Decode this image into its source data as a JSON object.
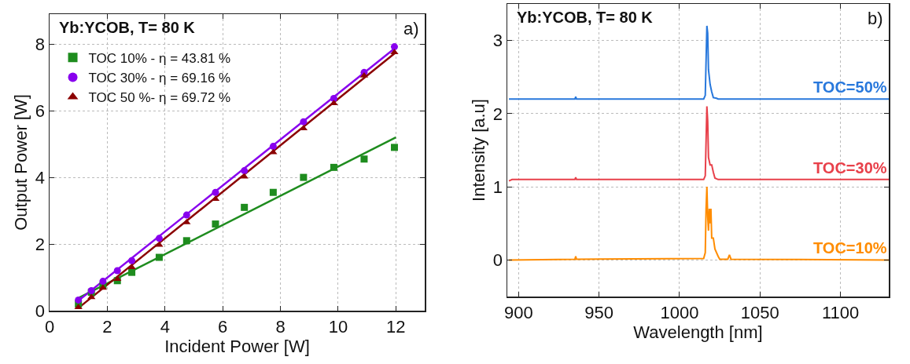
{
  "chart_data": [
    {
      "type": "scatter",
      "title": "Yb:YCOB, T= 80 K",
      "annotations": [
        "a)"
      ],
      "xlabel": "Incident Power [W]",
      "ylabel": "Output Power [W]",
      "xlim": [
        0,
        13
      ],
      "ylim": [
        0,
        8.9
      ],
      "xticks": [
        0,
        2,
        4,
        6,
        8,
        10,
        12
      ],
      "yticks": [
        0,
        2,
        4,
        6,
        8
      ],
      "grid": true,
      "legend": "top left",
      "x": [
        1,
        1.45,
        1.85,
        2.35,
        2.85,
        3.8,
        4.75,
        5.75,
        6.75,
        7.75,
        8.8,
        9.85,
        10.9,
        11.95
      ],
      "series": [
        {
          "type": "line",
          "color": "#1e8c1e",
          "x": [
            1,
            12
          ],
          "values": [
            0.38,
            5.2
          ]
        },
        {
          "type": "line",
          "color": "#8800ee",
          "x": [
            1,
            12
          ],
          "values": [
            0.3,
            7.9
          ]
        },
        {
          "type": "line",
          "color": "#8b0000",
          "x": [
            1,
            12
          ],
          "values": [
            0.08,
            7.75
          ]
        },
        {
          "name": "TOC 10% - η = 43.81 %",
          "color": "#1e8c1e",
          "marker": "square",
          "values": [
            0.2,
            0.55,
            0.75,
            0.9,
            1.15,
            1.6,
            2.1,
            2.6,
            3.1,
            3.55,
            4.0,
            4.3,
            4.55,
            4.9
          ]
        },
        {
          "name": "TOC 30% - η = 69.16 %",
          "color": "#8800ee",
          "marker": "circle",
          "values": [
            0.32,
            0.6,
            0.88,
            1.2,
            1.5,
            2.17,
            2.87,
            3.55,
            4.2,
            4.93,
            5.67,
            6.37,
            7.15,
            7.92
          ]
        },
        {
          "name": "TOC 50 %- η = 69.72 %",
          "color": "#8b0000",
          "marker": "triangle",
          "values": [
            0.1,
            0.4,
            0.68,
            0.95,
            1.3,
            1.97,
            2.65,
            3.35,
            4.02,
            4.75,
            5.47,
            6.22,
            7.05,
            7.75
          ]
        }
      ]
    },
    {
      "type": "line",
      "title": "Yb:YCOB, T= 80 K",
      "annotations": [
        "b)"
      ],
      "xlabel": "Wavelength [nm]",
      "ylabel": "Intensity [a.u]",
      "xlim": [
        893,
        1130
      ],
      "ylim": [
        -0.5,
        3.5
      ],
      "xticks": [
        900,
        950,
        1000,
        1050,
        1100
      ],
      "yticks": [
        0,
        1,
        2,
        3
      ],
      "grid": true,
      "series": [
        {
          "name": "TOC=50%",
          "color": "#2878dc",
          "x": [
            894,
            935,
            935.5,
            936,
            1015,
            1016,
            1017,
            1017.5,
            1018,
            1019,
            1020,
            1021,
            1023,
            1024,
            1130
          ],
          "values": [
            2.2,
            2.2,
            2.23,
            2.2,
            2.2,
            2.25,
            3.2,
            3.1,
            2.6,
            2.4,
            2.3,
            2.22,
            2.21,
            2.2,
            2.2
          ]
        },
        {
          "name": "TOC=30%",
          "color": "#e8404a",
          "x": [
            894,
            896,
            935,
            935.5,
            936,
            1015,
            1016,
            1017,
            1017.5,
            1018,
            1019,
            1020,
            1021,
            1022,
            1024,
            1130
          ],
          "values": [
            1.08,
            1.1,
            1.1,
            1.13,
            1.1,
            1.1,
            1.15,
            2.1,
            1.9,
            1.4,
            1.3,
            1.3,
            1.2,
            1.12,
            1.1,
            1.1
          ]
        },
        {
          "name": "TOC=10%",
          "color": "#ff8c00",
          "x": [
            894,
            935,
            935.5,
            936,
            1015,
            1016,
            1016.5,
            1017,
            1017.5,
            1018,
            1018.5,
            1019,
            1019.5,
            1020,
            1021,
            1022,
            1024,
            1025,
            1030,
            1031,
            1032,
            1130
          ],
          "values": [
            0,
            0.01,
            0.05,
            0.01,
            0.02,
            0.1,
            0.7,
            1.0,
            0.6,
            0.4,
            0.7,
            0.5,
            0.7,
            0.3,
            0.3,
            0.15,
            0.05,
            0.01,
            0.01,
            0.07,
            0.01,
            0
          ]
        }
      ]
    }
  ]
}
